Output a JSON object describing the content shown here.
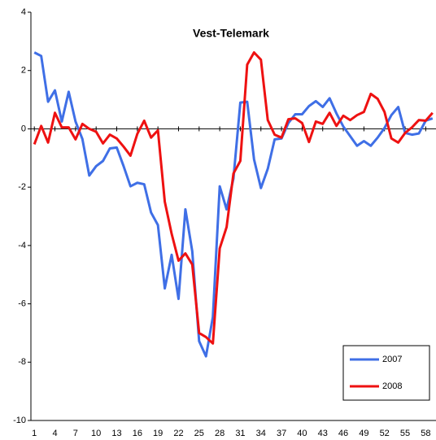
{
  "chart_data": {
    "type": "line",
    "title": "Vest-Telemark",
    "x": [
      1,
      2,
      3,
      4,
      5,
      6,
      7,
      8,
      9,
      10,
      11,
      12,
      13,
      14,
      15,
      16,
      17,
      18,
      19,
      20,
      21,
      22,
      23,
      24,
      25,
      26,
      27,
      28,
      29,
      30,
      31,
      32,
      33,
      34,
      35,
      36,
      37,
      38,
      39,
      40,
      41,
      42,
      43,
      44,
      45,
      46,
      47,
      48,
      49,
      50,
      51,
      52,
      53,
      54,
      55,
      56,
      57,
      58,
      59
    ],
    "series": [
      {
        "name": "2007",
        "color": "#3f6fe6",
        "values": [
          2.62,
          2.5,
          0.93,
          1.32,
          0.25,
          1.27,
          0.25,
          -0.35,
          -1.6,
          -1.28,
          -1.1,
          -0.67,
          -0.64,
          -1.28,
          -1.97,
          -1.85,
          -1.9,
          -2.87,
          -3.3,
          -5.47,
          -4.32,
          -5.83,
          -2.76,
          -4.2,
          -7.28,
          -7.8,
          -6.45,
          -1.97,
          -2.76,
          -1.7,
          0.9,
          0.93,
          -1.05,
          -2.03,
          -1.37,
          -0.36,
          -0.33,
          0.2,
          0.5,
          0.5,
          0.78,
          0.95,
          0.75,
          1.05,
          0.53,
          0.08,
          -0.25,
          -0.58,
          -0.42,
          -0.58,
          -0.3,
          0.03,
          0.47,
          0.75,
          -0.14,
          -0.2,
          -0.16,
          0.28,
          0.36
        ]
      },
      {
        "name": "2008",
        "color": "#ee1111",
        "values": [
          -0.53,
          0.1,
          -0.47,
          0.55,
          0.05,
          0.05,
          -0.36,
          0.17,
          0,
          -0.1,
          -0.5,
          -0.2,
          -0.33,
          -0.61,
          -0.92,
          -0.17,
          0.28,
          -0.3,
          -0.05,
          -2.5,
          -3.6,
          -4.52,
          -4.27,
          -4.65,
          -7.0,
          -7.14,
          -7.36,
          -4.1,
          -3.37,
          -1.53,
          -1.1,
          2.2,
          2.62,
          2.37,
          0.3,
          -0.2,
          -0.3,
          0.33,
          0.36,
          0.2,
          -0.45,
          0.25,
          0.17,
          0.55,
          0.1,
          0.45,
          0.3,
          0.47,
          0.58,
          1.2,
          1.03,
          0.58,
          -0.33,
          -0.47,
          -0.14,
          0.05,
          0.3,
          0.28,
          0.55
        ]
      }
    ],
    "xlim": [
      0.5,
      59.5
    ],
    "xticks": [
      1,
      4,
      7,
      10,
      13,
      16,
      19,
      22,
      25,
      28,
      31,
      34,
      37,
      40,
      43,
      46,
      49,
      52,
      55,
      58
    ],
    "ylim": [
      -10,
      4
    ],
    "yticks": [
      4,
      2,
      0,
      -2,
      -4,
      -6,
      -8,
      -10
    ],
    "legend": "bottom-right"
  }
}
